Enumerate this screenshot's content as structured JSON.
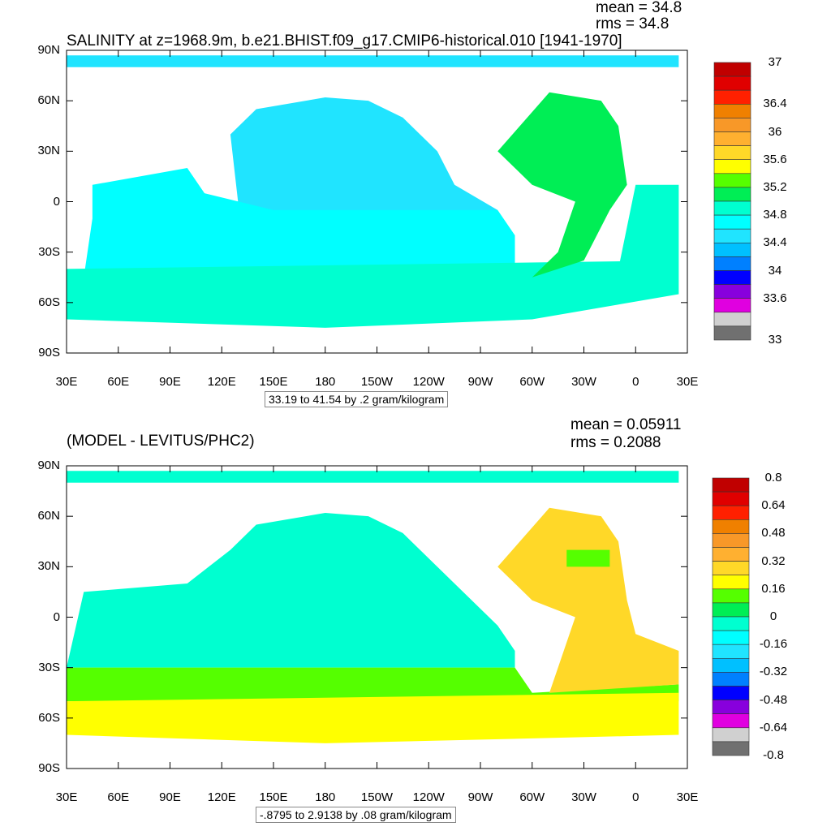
{
  "panels": [
    {
      "title": "SALINITY at z=1968.9m, b.e21.BHIST.f09_g17.CMIP6-historical.010 [1941-1970]",
      "mean": "mean = 34.8",
      "rms": "rms = 34.8",
      "range": "33.19 to 41.54 by .2 gram/kilogram",
      "colorbar": {
        "labels": [
          "37",
          "36.4",
          "36",
          "35.6",
          "35.2",
          "34.8",
          "34.4",
          "34",
          "33.6",
          "33"
        ]
      }
    },
    {
      "title": "(MODEL - LEVITUS/PHC2)",
      "mean": "mean = 0.05911",
      "rms": "rms = 0.2088",
      "range": "-.8795 to 2.9138 by .08 gram/kilogram",
      "colorbar": {
        "labels": [
          "0.8",
          "0.64",
          "0.48",
          "0.32",
          "0.16",
          "0",
          "-0.16",
          "-0.32",
          "-0.48",
          "-0.64",
          "-0.8"
        ]
      }
    }
  ],
  "axes": {
    "lat": [
      "90N",
      "60N",
      "30N",
      "0",
      "30S",
      "60S",
      "90S"
    ],
    "lon": [
      "30E",
      "60E",
      "90E",
      "120E",
      "150E",
      "180",
      "150W",
      "120W",
      "90W",
      "60W",
      "30W",
      "0",
      "30E"
    ]
  },
  "colors": [
    "#c00000",
    "#e00000",
    "#ff2000",
    "#f08000",
    "#f89828",
    "#ffb030",
    "#ffd828",
    "#ffff00",
    "#55ff00",
    "#00ee55",
    "#00ffd0",
    "#00ffff",
    "#20e4ff",
    "#00c0ff",
    "#0080ff",
    "#0000ff",
    "#8800dd",
    "#e000e0",
    "#d0d0d0",
    "#707070"
  ]
}
